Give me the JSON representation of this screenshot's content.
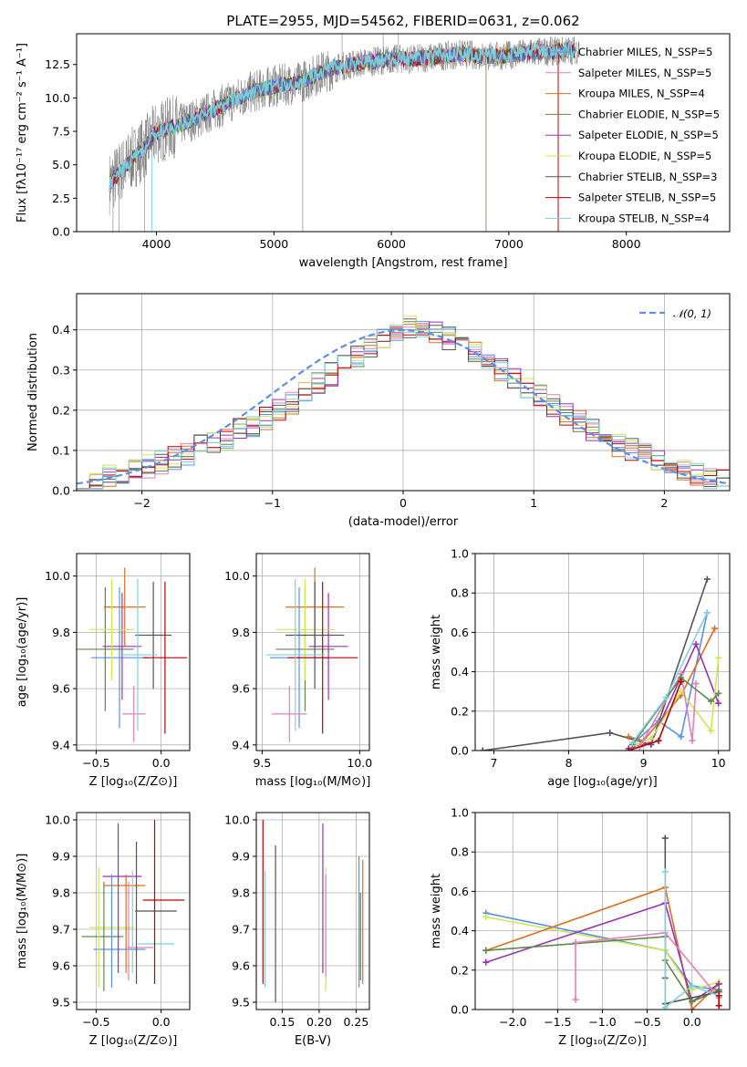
{
  "colors": {
    "c1": "#5a8ff0",
    "c2": "#e37fbd",
    "c3": "#de6e1e",
    "c4": "#5c8a49",
    "c5": "#9b31b8",
    "c6": "#cfe84e",
    "c7": "#555555",
    "c8": "#c00000",
    "c9": "#7ed0d9",
    "data": "#7f7f7f",
    "cyanfit": "#7fd8dc"
  },
  "chart_data": [
    {
      "type": "line",
      "title": "PLATE=2955, MJD=54562, FIBERID=0631, z=0.062",
      "xlabel": "wavelength [Angstrom, rest frame]",
      "ylabel": "Flux [fλ10⁻¹⁷ erg cm⁻² s⁻¹ A⁻¹]",
      "xlim": [
        3320,
        8880
      ],
      "ylim": [
        0,
        14.8
      ],
      "xticks": [
        "4000",
        "5000",
        "6000",
        "7000",
        "8000"
      ],
      "yticks": [
        "0.0",
        "2.5",
        "5.0",
        "7.5",
        "10.0",
        "12.5"
      ],
      "legend_position": "upper right",
      "series": [
        {
          "name": "Chabrier MILES, N_SSP=5",
          "color": "c1"
        },
        {
          "name": "Salpeter MILES, N_SSP=5",
          "color": "c2"
        },
        {
          "name": "Kroupa MILES, N_SSP=4",
          "color": "c3"
        },
        {
          "name": "Chabrier ELODIE, N_SSP=5",
          "color": "c4"
        },
        {
          "name": "Salpeter ELODIE, N_SSP=5",
          "color": "c5"
        },
        {
          "name": "Kroupa ELODIE, N_SSP=5",
          "color": "c6"
        },
        {
          "name": "Chabrier STELIB, N_SSP=3",
          "color": "c7"
        },
        {
          "name": "Salpeter STELIB, N_SSP=5",
          "color": "c8"
        },
        {
          "name": "Kroupa STELIB, N_SSP=4",
          "color": "c9"
        }
      ],
      "continuum": {
        "x": [
          3600,
          3700,
          3800,
          3900,
          4000,
          4200,
          4400,
          4600,
          4800,
          5000,
          5200,
          5400,
          5600,
          5800,
          6000,
          6200,
          6400,
          6600,
          6800,
          7000,
          7200,
          7400,
          7600
        ],
        "y": [
          3.6,
          4.6,
          5.5,
          6.3,
          7.4,
          8.0,
          8.7,
          9.6,
          10.4,
          10.9,
          11.1,
          11.9,
          12.4,
          12.7,
          12.9,
          12.9,
          13.1,
          13.3,
          13.1,
          13.2,
          13.4,
          13.5,
          13.6
        ]
      }
    },
    {
      "type": "bar",
      "xlabel": "(data-model)/error",
      "ylabel": "Normed distribution",
      "xlim": [
        -2.5,
        2.5
      ],
      "ylim": [
        0,
        0.49
      ],
      "xticks": [
        "−2",
        "−1",
        "0",
        "1",
        "2"
      ],
      "yticks": [
        "0.0",
        "0.1",
        "0.2",
        "0.3",
        "0.4"
      ],
      "legend": "𝒩(0, 1)",
      "bin_width": 0.1,
      "bin_start": -2.5,
      "values_example": [
        0.03,
        0.02,
        0.04,
        0.04,
        0.05,
        0.06,
        0.07,
        0.08,
        0.09,
        0.11,
        0.12,
        0.13,
        0.15,
        0.16,
        0.18,
        0.2,
        0.22,
        0.24,
        0.27,
        0.29,
        0.31,
        0.33,
        0.36,
        0.38,
        0.39,
        0.41,
        0.4,
        0.39,
        0.38,
        0.36,
        0.35,
        0.33,
        0.3,
        0.28,
        0.26,
        0.24,
        0.21,
        0.19,
        0.17,
        0.15,
        0.13,
        0.11,
        0.1,
        0.09,
        0.07,
        0.06,
        0.05,
        0.04,
        0.03,
        0.03
      ]
    },
    {
      "type": "scatter",
      "xlabel": "Z [log₁₀(Z/Z⊙)]",
      "ylabel": "age  [log₁₀(age/yr)]",
      "xlim": [
        -0.65,
        0.22
      ],
      "ylim": [
        9.38,
        10.08
      ],
      "xticks": [
        "−0.5",
        "0.0"
      ],
      "yticks": [
        "9.4",
        "9.6",
        "9.8",
        "10.0"
      ],
      "points": [
        {
          "c": "c1",
          "x": -0.32,
          "xe": 0.22,
          "y": 9.71,
          "ye": 0.25
        },
        {
          "c": "c2",
          "x": -0.21,
          "xe": 0.09,
          "y": 9.51,
          "ye": 0.1
        },
        {
          "c": "c3",
          "x": -0.28,
          "xe": 0.16,
          "y": 9.89,
          "ye": 0.14
        },
        {
          "c": "c4",
          "x": -0.43,
          "xe": 0.22,
          "y": 9.74,
          "ye": 0.22
        },
        {
          "c": "c5",
          "x": -0.3,
          "xe": 0.15,
          "y": 9.75,
          "ye": 0.19
        },
        {
          "c": "c6",
          "x": -0.38,
          "xe": 0.17,
          "y": 9.81,
          "ye": 0.18
        },
        {
          "c": "c7",
          "x": -0.06,
          "xe": 0.14,
          "y": 9.79,
          "ye": 0.19
        },
        {
          "c": "c8",
          "x": 0.03,
          "xe": 0.17,
          "y": 9.71,
          "ye": 0.27
        },
        {
          "c": "c9",
          "x": -0.18,
          "xe": 0.15,
          "y": 9.72,
          "ye": 0.27
        }
      ]
    },
    {
      "type": "scatter",
      "xlabel": "mass [log₁₀(M/M⊙)]",
      "xlim": [
        9.47,
        10.05
      ],
      "ylim": [
        9.38,
        10.08
      ],
      "xticks": [
        "9.5",
        "10.0"
      ],
      "yticks": [
        "9.4",
        "9.6",
        "9.8",
        "10.0"
      ],
      "points": [
        {
          "c": "c1",
          "x": 9.69,
          "xe": 0.15,
          "y": 9.71,
          "ye": 0.25
        },
        {
          "c": "c2",
          "x": 9.64,
          "xe": 0.09,
          "y": 9.51,
          "ye": 0.1
        },
        {
          "c": "c3",
          "x": 9.77,
          "xe": 0.15,
          "y": 9.89,
          "ye": 0.14
        },
        {
          "c": "c4",
          "x": 9.72,
          "xe": 0.15,
          "y": 9.74,
          "ye": 0.22
        },
        {
          "c": "c5",
          "x": 9.84,
          "xe": 0.1,
          "y": 9.75,
          "ye": 0.19
        },
        {
          "c": "c6",
          "x": 9.72,
          "xe": 0.15,
          "y": 9.81,
          "ye": 0.18
        },
        {
          "c": "c7",
          "x": 9.77,
          "xe": 0.15,
          "y": 9.79,
          "ye": 0.19
        },
        {
          "c": "c8",
          "x": 9.81,
          "xe": 0.18,
          "y": 9.71,
          "ye": 0.27
        },
        {
          "c": "c9",
          "x": 9.67,
          "xe": 0.15,
          "y": 9.72,
          "ye": 0.27
        }
      ]
    },
    {
      "type": "line",
      "xlabel": "age  [log₁₀(age/yr)]",
      "ylabel": "mass weight",
      "xlim": [
        6.75,
        10.15
      ],
      "ylim": [
        0,
        1
      ],
      "xticks": [
        "7",
        "8",
        "9",
        "10"
      ],
      "yticks": [
        "0.0",
        "0.2",
        "0.4",
        "0.6",
        "0.8",
        "1.0"
      ],
      "series": [
        {
          "c": "c7",
          "x": [
            6.85,
            8.55,
            9.1,
            9.85
          ],
          "y": [
            0.0,
            0.09,
            0.03,
            0.87
          ]
        },
        {
          "c": "c1",
          "x": [
            8.9,
            9.2,
            9.5,
            9.85
          ],
          "y": [
            0.05,
            0.15,
            0.07,
            0.7
          ]
        },
        {
          "c": "c3",
          "x": [
            8.8,
            9.0,
            9.5,
            9.95
          ],
          "y": [
            0.07,
            0.05,
            0.28,
            0.62
          ]
        },
        {
          "c": "c5",
          "x": [
            8.8,
            9.1,
            9.7,
            10.0
          ],
          "y": [
            0.01,
            0.04,
            0.54,
            0.24
          ]
        },
        {
          "c": "c6",
          "x": [
            8.9,
            9.1,
            9.5,
            9.9,
            10.0
          ],
          "y": [
            0.03,
            0.06,
            0.3,
            0.1,
            0.47
          ]
        },
        {
          "c": "c2",
          "x": [
            8.95,
            9.5,
            9.65,
            9.7
          ],
          "y": [
            0.02,
            0.39,
            0.05,
            0.34
          ]
        },
        {
          "c": "c4",
          "x": [
            8.85,
            9.5,
            9.9,
            10.0
          ],
          "y": [
            0.03,
            0.37,
            0.25,
            0.29
          ]
        },
        {
          "c": "c8",
          "x": [
            8.8,
            9.2,
            9.5
          ],
          "y": [
            0.0,
            0.05,
            0.35
          ]
        },
        {
          "c": "c9",
          "x": [
            8.85,
            9.3,
            9.85
          ],
          "y": [
            0.04,
            0.27,
            0.7
          ]
        }
      ]
    },
    {
      "type": "scatter",
      "xlabel": "Z [log₁₀(Z/Z⊙)]",
      "ylabel": "mass [log₁₀(M/M⊙)]",
      "xlim": [
        -0.65,
        0.22
      ],
      "ylim": [
        9.48,
        10.02
      ],
      "xticks": [
        "−0.5",
        "0.0"
      ],
      "yticks": [
        "9.5",
        "9.6",
        "9.7",
        "9.8",
        "9.9",
        "10.0"
      ],
      "points": [
        {
          "c": "c1",
          "x": -0.32,
          "xe": 0.2,
          "y": 9.645,
          "ye": 0.0
        },
        {
          "c": "c2",
          "x": -0.16,
          "xe": 0.1,
          "y": 9.65,
          "ye": 0.0
        },
        {
          "c": "c3",
          "x": -0.28,
          "xe": 0.16,
          "y": 9.82,
          "ye": 0.0
        },
        {
          "c": "c4",
          "x": -0.45,
          "xe": 0.16,
          "y": 9.68,
          "ye": 0.0
        },
        {
          "c": "c5",
          "x": -0.3,
          "xe": 0.15,
          "y": 9.845,
          "ye": 0.0
        },
        {
          "c": "c6",
          "x": -0.38,
          "xe": 0.17,
          "y": 9.705,
          "ye": 0.0
        },
        {
          "c": "c7",
          "x": -0.04,
          "xe": 0.16,
          "y": 9.75,
          "ye": 0.0
        },
        {
          "c": "c8",
          "x": 0.02,
          "xe": 0.16,
          "y": 9.78,
          "ye": 0.0
        },
        {
          "c": "c9",
          "x": -0.04,
          "xe": 0.14,
          "y": 9.66,
          "ye": 0.0
        }
      ],
      "vlines": [
        {
          "c": "c1",
          "x": -0.38,
          "y0": 9.54,
          "y1": 9.85
        },
        {
          "c": "c2",
          "x": -0.25,
          "y0": 9.56,
          "y1": 9.83
        },
        {
          "c": "c3",
          "x": -0.27,
          "y0": 9.58,
          "y1": 9.85
        },
        {
          "c": "c4",
          "x": -0.44,
          "y0": 9.53,
          "y1": 9.83
        },
        {
          "c": "c5",
          "x": -0.33,
          "y0": 9.58,
          "y1": 9.99
        },
        {
          "c": "c6",
          "x": -0.48,
          "y0": 9.54,
          "y1": 9.87
        },
        {
          "c": "c7",
          "x": -0.19,
          "y0": 9.55,
          "y1": 9.94
        },
        {
          "c": "c8",
          "x": -0.05,
          "y0": 9.55,
          "y1": 10.0
        },
        {
          "c": "c9",
          "x": -0.22,
          "y0": 9.58,
          "y1": 9.86
        }
      ]
    },
    {
      "type": "scatter",
      "xlabel": "E(B-V)",
      "xlim": [
        0.115,
        0.268
      ],
      "ylim": [
        9.48,
        10.02
      ],
      "xticks": [
        "0.15",
        "0.20",
        "0.25"
      ],
      "yticks": [
        "9.5",
        "9.6",
        "9.7",
        "9.8",
        "9.9",
        "10.0"
      ],
      "vlines": [
        {
          "c": "c8",
          "x": 0.124,
          "y0": 9.55,
          "y1": 10.0
        },
        {
          "c": "c9",
          "x": 0.127,
          "y0": 9.54,
          "y1": 9.86
        },
        {
          "c": "c7",
          "x": 0.141,
          "y0": 9.5,
          "y1": 9.93
        },
        {
          "c": "c5",
          "x": 0.205,
          "y0": 9.58,
          "y1": 9.99
        },
        {
          "c": "c6",
          "x": 0.209,
          "y0": 9.53,
          "y1": 9.87
        },
        {
          "c": "c2",
          "x": 0.209,
          "y0": 9.57,
          "y1": 9.85
        },
        {
          "c": "c1",
          "x": 0.254,
          "y0": 9.54,
          "y1": 9.9
        },
        {
          "c": "c3",
          "x": 0.259,
          "y0": 9.55,
          "y1": 9.89
        },
        {
          "c": "c4",
          "x": 0.256,
          "y0": 9.56,
          "y1": 9.8
        }
      ]
    },
    {
      "type": "line",
      "xlabel": "Z [log₁₀(Z/Z⊙)]",
      "ylabel": "mass weight",
      "xlim": [
        -2.42,
        0.42
      ],
      "ylim": [
        0,
        1
      ],
      "xticks": [
        "−2.0",
        "−1.5",
        "−1.0",
        "−0.5",
        "0.0"
      ],
      "yticks": [
        "0.0",
        "0.2",
        "0.4",
        "0.6",
        "0.8",
        "1.0"
      ],
      "series": [
        {
          "c": "c1",
          "x": [
            -2.3,
            -0.3,
            0.0,
            0.3
          ],
          "y": [
            0.49,
            0.3,
            0.12,
            0.1
          ]
        },
        {
          "c": "c6",
          "x": [
            -2.3,
            -0.3,
            0.0,
            0.3
          ],
          "y": [
            0.47,
            0.3,
            0.1,
            0.14
          ]
        },
        {
          "c": "c3",
          "x": [
            -2.3,
            -0.3,
            0.0,
            0.3
          ],
          "y": [
            0.3,
            0.62,
            0.0,
            0.13
          ]
        },
        {
          "c": "c5",
          "x": [
            -2.3,
            -0.3,
            0.0,
            0.3
          ],
          "y": [
            0.24,
            0.54,
            0.04,
            0.13
          ]
        },
        {
          "c": "c4",
          "x": [
            -2.3,
            -0.3,
            -0.3,
            0.0,
            0.3
          ],
          "y": [
            0.3,
            0.37,
            0.25,
            0.04,
            0.1
          ]
        },
        {
          "c": "c2",
          "x": [
            -1.3,
            -1.3,
            -0.3,
            0.3
          ],
          "y": [
            0.05,
            0.34,
            0.39,
            0.06
          ]
        },
        {
          "c": "c7",
          "x": [
            -0.3,
            -0.3,
            -0.3,
            0.3
          ],
          "y": [
            0.87,
            0.16,
            0.03,
            0.09
          ]
        },
        {
          "c": "c9",
          "x": [
            -0.3,
            -0.3,
            0.0,
            0.3
          ],
          "y": [
            0.7,
            0.01,
            0.12,
            0.07
          ]
        },
        {
          "c": "c8",
          "x": [
            0.3,
            0.3
          ],
          "y": [
            0.02,
            0.07
          ]
        }
      ]
    }
  ]
}
